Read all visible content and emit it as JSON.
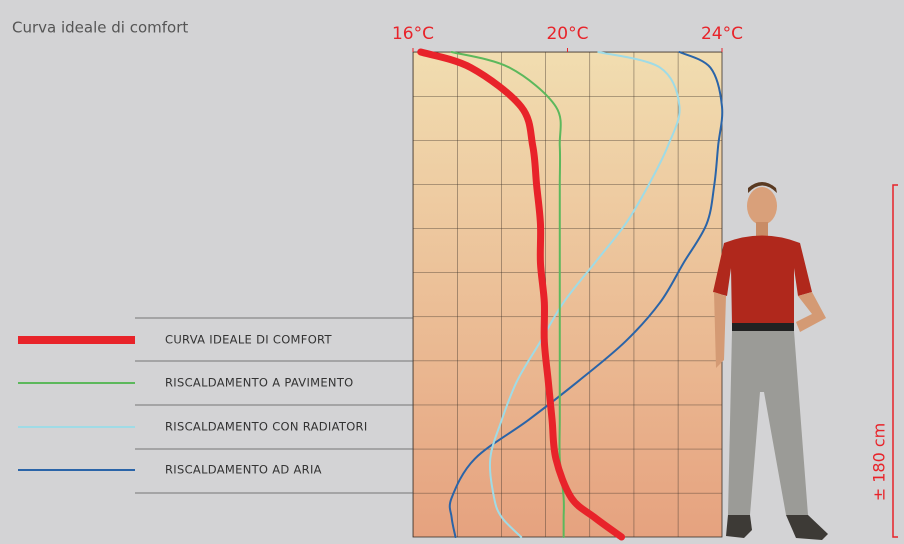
{
  "chart_data": {
    "type": "profile",
    "title": "Curva ideale di comfort",
    "xlim": [
      16,
      24
    ],
    "xticks": [
      {
        "value": 16,
        "label": "16°C"
      },
      {
        "value": 20,
        "label": "20°C"
      },
      {
        "value": 24,
        "label": "24°C"
      }
    ],
    "ylim": [
      0,
      248
    ],
    "y": [
      0,
      10,
      20,
      40,
      60,
      80,
      100,
      120,
      140,
      160,
      180,
      200,
      220,
      240,
      248
    ],
    "bracket": {
      "label": "± 180 cm",
      "value": 180
    },
    "series": [
      {
        "name": "CURVA IDEALE DI COMFORT",
        "color": "#e8232a",
        "values": [
          21.4,
          20.7,
          20.1,
          19.7,
          19.6,
          19.5,
          19.4,
          19.4,
          19.3,
          19.3,
          19.2,
          19.1,
          18.8,
          17.5,
          16.2
        ]
      },
      {
        "name": "RISCALDAMENTO A PAVIMENTO",
        "color": "#5cb85c",
        "values": [
          19.9,
          19.9,
          19.9,
          19.8,
          19.8,
          19.8,
          19.8,
          19.8,
          19.8,
          19.8,
          19.8,
          19.8,
          19.7,
          18.5,
          17.0
        ]
      },
      {
        "name": "RISCALDAMENTO CON RADIATORI",
        "color": "#9fdbe6",
        "values": [
          18.8,
          18.3,
          18.1,
          18.0,
          18.3,
          18.7,
          19.3,
          19.9,
          20.7,
          21.5,
          22.1,
          22.6,
          22.9,
          22.4,
          20.8
        ]
      },
      {
        "name": "RISCALDAMENTO AD ARIA",
        "color": "#2a64a8",
        "values": [
          17.1,
          17.0,
          17.0,
          17.6,
          19.0,
          20.3,
          21.5,
          22.4,
          23.0,
          23.6,
          23.8,
          23.9,
          24.0,
          23.7,
          22.9
        ]
      }
    ]
  }
}
